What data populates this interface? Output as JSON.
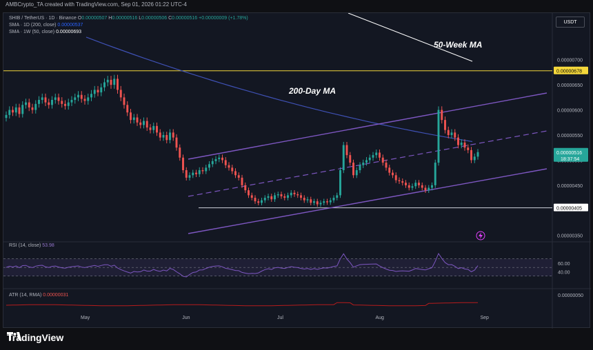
{
  "header": {
    "created_by": "AMBCrypto_TA created with TradingView.com, Sep 01, 2026 01:22 UTC-4"
  },
  "legend": {
    "symbol": "SHIB / TetherUS · 1D · Binance",
    "o_label": "O",
    "o": "0.00000507",
    "h_label": "H",
    "h": "0.00000516",
    "l_label": "L",
    "l": "0.00000506",
    "c_label": "C",
    "c": "0.00000516",
    "chg": "+0.00000009 (+1.78%)",
    "sma200_label": "SMA · 1D (200, close)",
    "sma200": "0.00000537",
    "sma50w_label": "SMA · 1W (50, close)",
    "sma50w": "0.00000693",
    "rsi_label": "RSI (14, close)",
    "rsi": "53.98",
    "atr_label": "ATR (14, RMA)",
    "atr": "0.00000031"
  },
  "currency": "USDT",
  "annotations": {
    "ma50w": "50-Week MA",
    "ma200d": "200-Day MA"
  },
  "price_badges": {
    "resistance": "0.00000678",
    "current": "0.00000516",
    "countdown": "18:37:54",
    "support": "0.00000405"
  },
  "colors": {
    "up": "#26a69a",
    "down": "#ef5350",
    "sma200": "#3f51b5",
    "sma50w": "#ffffff",
    "channel": "#7e57c2",
    "resistance": "#f5d83b",
    "support": "#d1d4dc",
    "rsi": "#7e57c2",
    "atr": "#b71c1c"
  },
  "chart_data": {
    "type": "candlestick",
    "x_ticks": [
      "May",
      "Jun",
      "Jul",
      "Aug",
      "Sep"
    ],
    "y_ticks": [
      "0.00000700",
      "0.00000650",
      "0.00000600",
      "0.00000550",
      "0.00000500",
      "0.00000450",
      "0.00000350"
    ],
    "ylim": [
      3.4e-06,
      7.6e-06
    ],
    "closes": [
      5.9e-06,
      6e-06,
      5.95e-06,
      6.05e-06,
      5.92e-06,
      6.1e-06,
      6.15e-06,
      6.05e-06,
      6e-06,
      6.12e-06,
      6.2e-06,
      6.25e-06,
      6.15e-06,
      6.1e-06,
      6.2e-06,
      6.25e-06,
      6.18e-06,
      6.12e-06,
      6.08e-06,
      6.15e-06,
      6.2e-06,
      6.25e-06,
      6.3e-06,
      6.22e-06,
      6.18e-06,
      6.25e-06,
      6.32e-06,
      6.4e-06,
      6.35e-06,
      6.45e-06,
      6.55e-06,
      6.6e-06,
      6.5e-06,
      6.62e-06,
      6.4e-06,
      6.25e-06,
      6.1e-06,
      5.95e-06,
      5.8e-06,
      5.85e-06,
      5.75e-06,
      5.7e-06,
      5.78e-06,
      5.65e-06,
      5.6e-06,
      5.68e-06,
      5.55e-06,
      5.45e-06,
      5.5e-06,
      5.4e-06,
      5.55e-06,
      5.45e-06,
      5.25e-06,
      5.05e-06,
      4.8e-06,
      4.65e-06,
      4.7e-06,
      4.75e-06,
      4.72e-06,
      4.8e-06,
      4.78e-06,
      4.85e-06,
      4.92e-06,
      4.98e-06,
      5.02e-06,
      5.05e-06,
      5e-06,
      4.9e-06,
      4.85e-06,
      4.78e-06,
      4.7e-06,
      4.65e-06,
      4.5e-06,
      4.4e-06,
      4.3e-06,
      4.25e-06,
      4.18e-06,
      4.15e-06,
      4.2e-06,
      4.25e-06,
      4.28e-06,
      4.22e-06,
      4.3e-06,
      4.32e-06,
      4.28e-06,
      4.25e-06,
      4.3e-06,
      4.35e-06,
      4.32e-06,
      4.3e-06,
      4.25e-06,
      4.2e-06,
      4.22e-06,
      4.15e-06,
      4.18e-06,
      4.12e-06,
      4.15e-06,
      4.18e-06,
      4.16e-06,
      4.2e-06,
      4.25e-06,
      4.3e-06,
      4.8e-06,
      5.3e-06,
      5.1e-06,
      4.95e-06,
      4.7e-06,
      4.8e-06,
      4.9e-06,
      4.95e-06,
      5e-06,
      5.05e-06,
      5.1e-06,
      5.15e-06,
      5.05e-06,
      4.95e-06,
      4.85e-06,
      4.75e-06,
      4.7e-06,
      4.6e-06,
      4.58e-06,
      4.55e-06,
      4.5e-06,
      4.45e-06,
      4.48e-06,
      4.55e-06,
      4.5e-06,
      4.45e-06,
      4.4e-06,
      4.45e-06,
      4.5e-06,
      4.95e-06,
      6e-06,
      5.8e-06,
      5.6e-06,
      5.5e-06,
      5.55e-06,
      5.45e-06,
      5.3e-06,
      5.35e-06,
      5.25e-06,
      5.2e-06,
      5e-06,
      5.07e-06,
      5.16e-06
    ],
    "sma200_start": 7.45e-06,
    "sma200_end": 5.37e-06,
    "rsi": {
      "ticks": [
        "60.00",
        "40.00"
      ],
      "last": 53.98
    },
    "atr": {
      "ticks": [
        "0.00000050"
      ],
      "last": 3.1e-07
    }
  }
}
